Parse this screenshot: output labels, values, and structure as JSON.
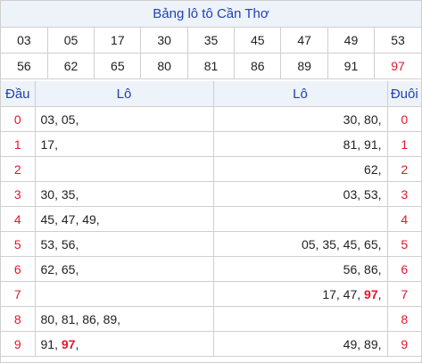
{
  "title": "Bảng lô tô Cần Thơ",
  "numbers_row1": [
    "03",
    "05",
    "17",
    "30",
    "35",
    "45",
    "47",
    "49",
    "53"
  ],
  "numbers_row2": [
    "56",
    "62",
    "65",
    "80",
    "81",
    "86",
    "89",
    "91",
    "97"
  ],
  "highlight_number": "97",
  "headers": {
    "head": "Đầu",
    "lo_left": "Lô",
    "lo_right": "Lô",
    "tail": "Đuôi"
  },
  "rows": [
    {
      "head": "0",
      "left": "03, 05,",
      "right": "30, 80,",
      "tail": "0"
    },
    {
      "head": "1",
      "left": "17,",
      "right": "81, 91,",
      "tail": "1"
    },
    {
      "head": "2",
      "left": "",
      "right": "62,",
      "tail": "2"
    },
    {
      "head": "3",
      "left": "30, 35,",
      "right": "03, 53,",
      "tail": "3"
    },
    {
      "head": "4",
      "left": "45, 47, 49,",
      "right": "",
      "tail": "4"
    },
    {
      "head": "5",
      "left": "53, 56,",
      "right": "05, 35, 45, 65,",
      "tail": "5"
    },
    {
      "head": "6",
      "left": "62, 65,",
      "right": "56, 86,",
      "tail": "6"
    },
    {
      "head": "7",
      "left": "",
      "right": "17, 47, 97,",
      "tail": "7"
    },
    {
      "head": "8",
      "left": "80, 81, 86, 89,",
      "right": "",
      "tail": "8"
    },
    {
      "head": "9",
      "left": "91, 97,",
      "right": "49, 89,",
      "tail": "9"
    }
  ],
  "colors": {
    "accent_red": "#e0182d",
    "header_blue": "#1f3fb8",
    "header_bg": "#eef2f9"
  }
}
